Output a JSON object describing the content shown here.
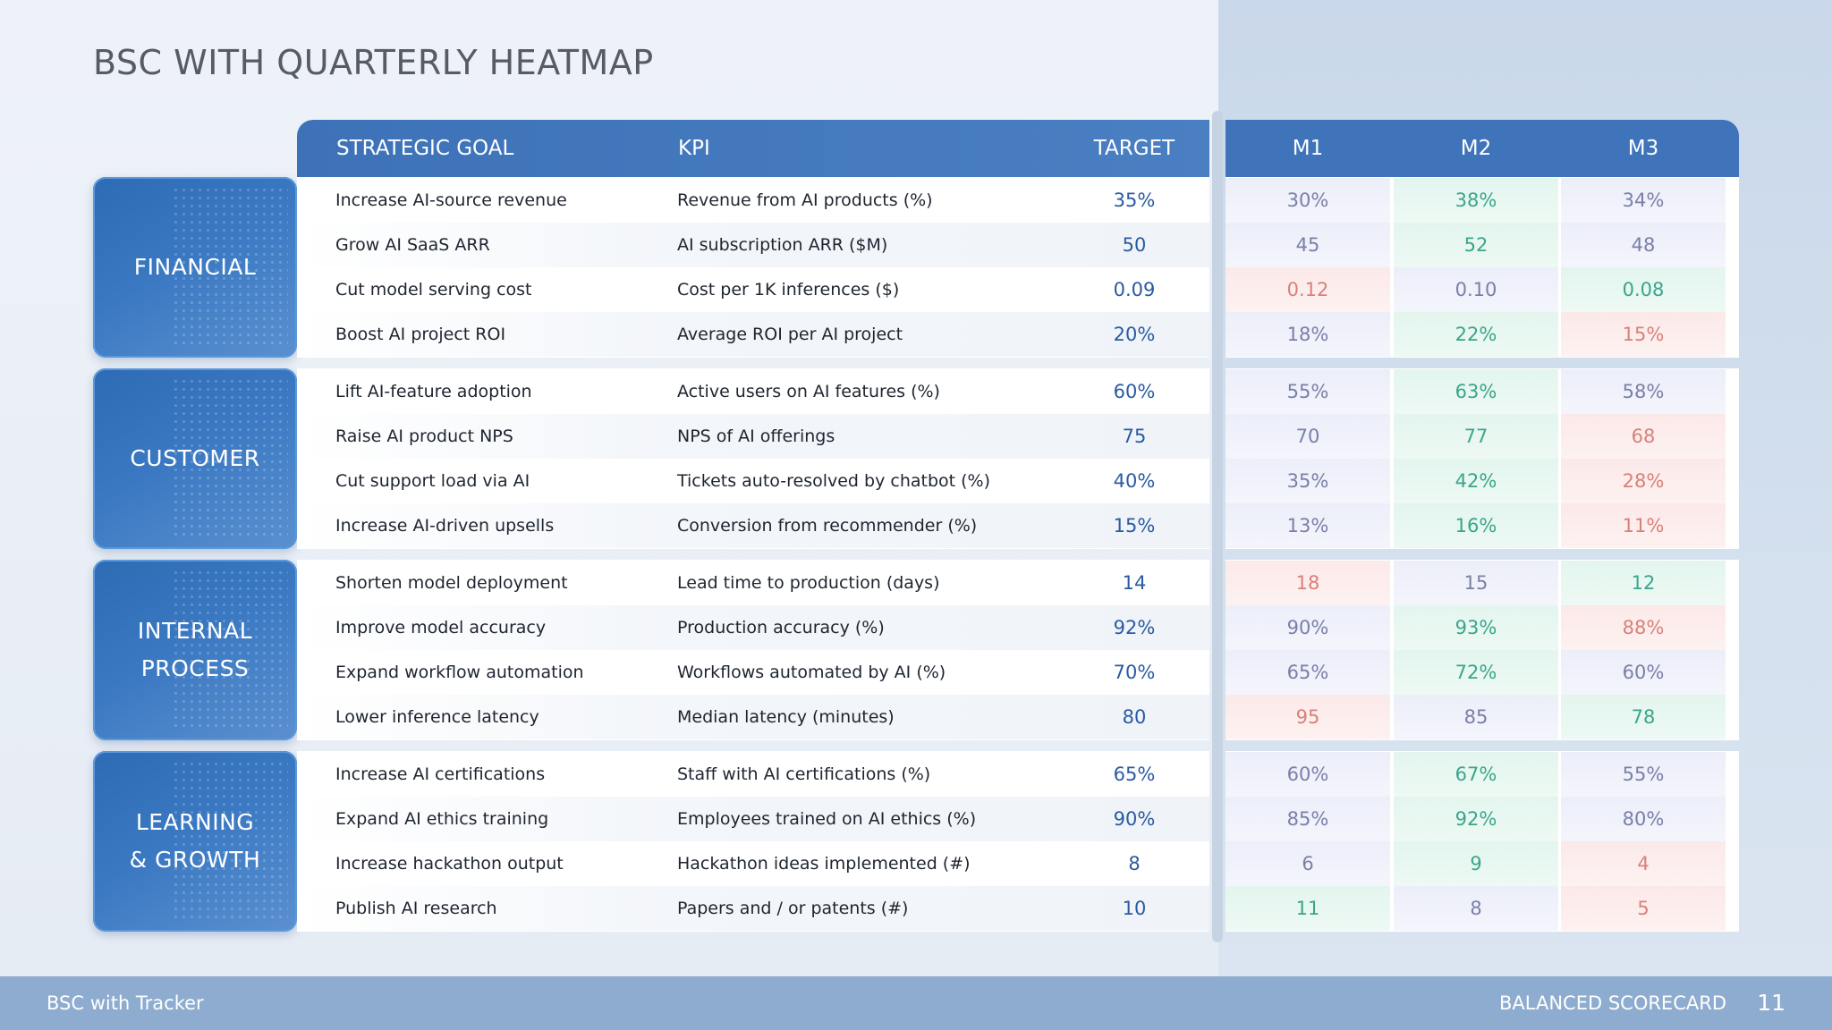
{
  "title": "BSC WITH QUARTERLY HEATMAP",
  "headers": {
    "goal": "STRATEGIC GOAL",
    "kpi": "KPI",
    "target": "TARGET",
    "m1": "M1",
    "m2": "M2",
    "m3": "M3"
  },
  "heatmap_colors": {
    "good": "#3aa58a",
    "mid": "#7a7fa8",
    "bad": "#d9807a"
  },
  "sections": [
    {
      "category": "FINANCIAL",
      "rows": [
        {
          "goal": "Increase AI-source revenue",
          "kpi": "Revenue from AI products (%)",
          "target": "35%",
          "m1": "30%",
          "m2": "38%",
          "m3": "34%",
          "s1": "mid",
          "s2": "good",
          "s3": "mid"
        },
        {
          "goal": "Grow AI SaaS ARR",
          "kpi": "AI subscription ARR ($M)",
          "target": "50",
          "m1": "45",
          "m2": "52",
          "m3": "48",
          "s1": "mid",
          "s2": "good",
          "s3": "mid"
        },
        {
          "goal": "Cut model serving cost",
          "kpi": "Cost per 1K inferences ($)",
          "target": "0.09",
          "m1": "0.12",
          "m2": "0.10",
          "m3": "0.08",
          "s1": "bad",
          "s2": "mid",
          "s3": "good"
        },
        {
          "goal": "Boost AI project ROI",
          "kpi": "Average ROI per AI project",
          "target": "20%",
          "m1": "18%",
          "m2": "22%",
          "m3": "15%",
          "s1": "mid",
          "s2": "good",
          "s3": "bad"
        }
      ]
    },
    {
      "category": "CUSTOMER",
      "rows": [
        {
          "goal": "Lift AI-feature adoption",
          "kpi": "Active users on AI features (%)",
          "target": "60%",
          "m1": "55%",
          "m2": "63%",
          "m3": "58%",
          "s1": "mid",
          "s2": "good",
          "s3": "mid"
        },
        {
          "goal": "Raise AI product NPS",
          "kpi": "NPS of AI offerings",
          "target": "75",
          "m1": "70",
          "m2": "77",
          "m3": "68",
          "s1": "mid",
          "s2": "good",
          "s3": "bad"
        },
        {
          "goal": "Cut support load via AI",
          "kpi": "Tickets auto-resolved by chatbot (%)",
          "target": "40%",
          "m1": "35%",
          "m2": "42%",
          "m3": "28%",
          "s1": "mid",
          "s2": "good",
          "s3": "bad"
        },
        {
          "goal": "Increase AI-driven upsells",
          "kpi": "Conversion from recommender (%)",
          "target": "15%",
          "m1": "13%",
          "m2": "16%",
          "m3": "11%",
          "s1": "mid",
          "s2": "good",
          "s3": "bad"
        }
      ]
    },
    {
      "category": "INTERNAL\nPROCESS",
      "rows": [
        {
          "goal": "Shorten model deployment",
          "kpi": "Lead time to production (days)",
          "target": "14",
          "m1": "18",
          "m2": "15",
          "m3": "12",
          "s1": "bad",
          "s2": "mid",
          "s3": "good"
        },
        {
          "goal": "Improve model accuracy",
          "kpi": "Production accuracy (%)",
          "target": "92%",
          "m1": "90%",
          "m2": "93%",
          "m3": "88%",
          "s1": "mid",
          "s2": "good",
          "s3": "bad"
        },
        {
          "goal": "Expand workflow automation",
          "kpi": "Workflows automated by AI (%)",
          "target": "70%",
          "m1": "65%",
          "m2": "72%",
          "m3": "60%",
          "s1": "mid",
          "s2": "good",
          "s3": "mid"
        },
        {
          "goal": "Lower inference latency",
          "kpi": "Median latency (minutes)",
          "target": "80",
          "m1": "95",
          "m2": "85",
          "m3": "78",
          "s1": "bad",
          "s2": "mid",
          "s3": "good"
        }
      ]
    },
    {
      "category": "LEARNING\n& GROWTH",
      "rows": [
        {
          "goal": "Increase AI certifications",
          "kpi": "Staff with AI certifications (%)",
          "target": "65%",
          "m1": "60%",
          "m2": "67%",
          "m3": "55%",
          "s1": "mid",
          "s2": "good",
          "s3": "mid"
        },
        {
          "goal": "Expand AI ethics training",
          "kpi": "Employees trained on AI ethics (%)",
          "target": "90%",
          "m1": "85%",
          "m2": "92%",
          "m3": "80%",
          "s1": "mid",
          "s2": "good",
          "s3": "mid"
        },
        {
          "goal": "Increase hackathon output",
          "kpi": "Hackathon ideas implemented (#)",
          "target": "8",
          "m1": "6",
          "m2": "9",
          "m3": "4",
          "s1": "mid",
          "s2": "good",
          "s3": "bad"
        },
        {
          "goal": "Publish AI research",
          "kpi": "Papers and / or patents (#)",
          "target": "10",
          "m1": "11",
          "m2": "8",
          "m3": "5",
          "s1": "good",
          "s2": "mid",
          "s3": "bad"
        }
      ]
    }
  ],
  "footer": {
    "left": "BSC with Tracker",
    "right": "BALANCED SCORECARD",
    "page": "11"
  }
}
